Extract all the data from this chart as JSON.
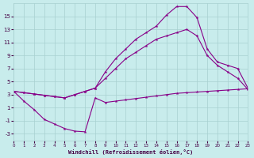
{
  "background_color": "#c8ecec",
  "line_color": "#880088",
  "grid_color": "#a8d0d0",
  "xlabel": "Windchill (Refroidissement éolien,°C)",
  "xlim": [
    0,
    23
  ],
  "ylim": [
    -4,
    17
  ],
  "xticks": [
    0,
    1,
    2,
    3,
    4,
    5,
    6,
    7,
    8,
    9,
    10,
    11,
    12,
    13,
    14,
    15,
    16,
    17,
    18,
    19,
    20,
    21,
    22,
    23
  ],
  "yticks": [
    -3,
    -1,
    1,
    3,
    5,
    7,
    9,
    11,
    13,
    15
  ],
  "line1_x": [
    0,
    1,
    2,
    3,
    4,
    5,
    6,
    7,
    8,
    9,
    10,
    11,
    12,
    13,
    14,
    15,
    16,
    17,
    18,
    19,
    20,
    21,
    22,
    23
  ],
  "line1_y": [
    3.5,
    2.0,
    0.7,
    -0.8,
    -1.5,
    -2.2,
    -2.6,
    -2.7,
    2.5,
    1.8,
    2.0,
    2.2,
    2.4,
    2.6,
    2.8,
    3.0,
    3.2,
    3.3,
    3.4,
    3.5,
    3.6,
    3.7,
    3.8,
    3.9
  ],
  "line2_x": [
    0,
    1,
    2,
    3,
    4,
    5,
    6,
    7,
    8,
    9,
    10,
    11,
    12,
    13,
    14,
    15,
    16,
    17,
    18,
    19,
    20,
    21,
    22,
    23
  ],
  "line2_y": [
    3.5,
    3.3,
    3.1,
    2.9,
    2.7,
    2.5,
    3.0,
    3.5,
    4.0,
    5.5,
    7.0,
    8.5,
    9.5,
    10.5,
    11.5,
    12.0,
    12.5,
    13.0,
    12.0,
    9.0,
    7.5,
    6.5,
    5.5,
    3.8
  ],
  "line3_x": [
    0,
    1,
    2,
    3,
    4,
    5,
    6,
    7,
    8,
    9,
    10,
    11,
    12,
    13,
    14,
    15,
    16,
    17,
    18,
    19,
    20,
    21,
    22,
    23
  ],
  "line3_y": [
    3.5,
    3.3,
    3.1,
    2.9,
    2.7,
    2.5,
    3.0,
    3.5,
    4.0,
    6.5,
    8.5,
    10.0,
    11.5,
    12.5,
    13.5,
    15.2,
    16.5,
    16.5,
    14.8,
    10.0,
    8.0,
    7.5,
    7.0,
    4.0
  ]
}
